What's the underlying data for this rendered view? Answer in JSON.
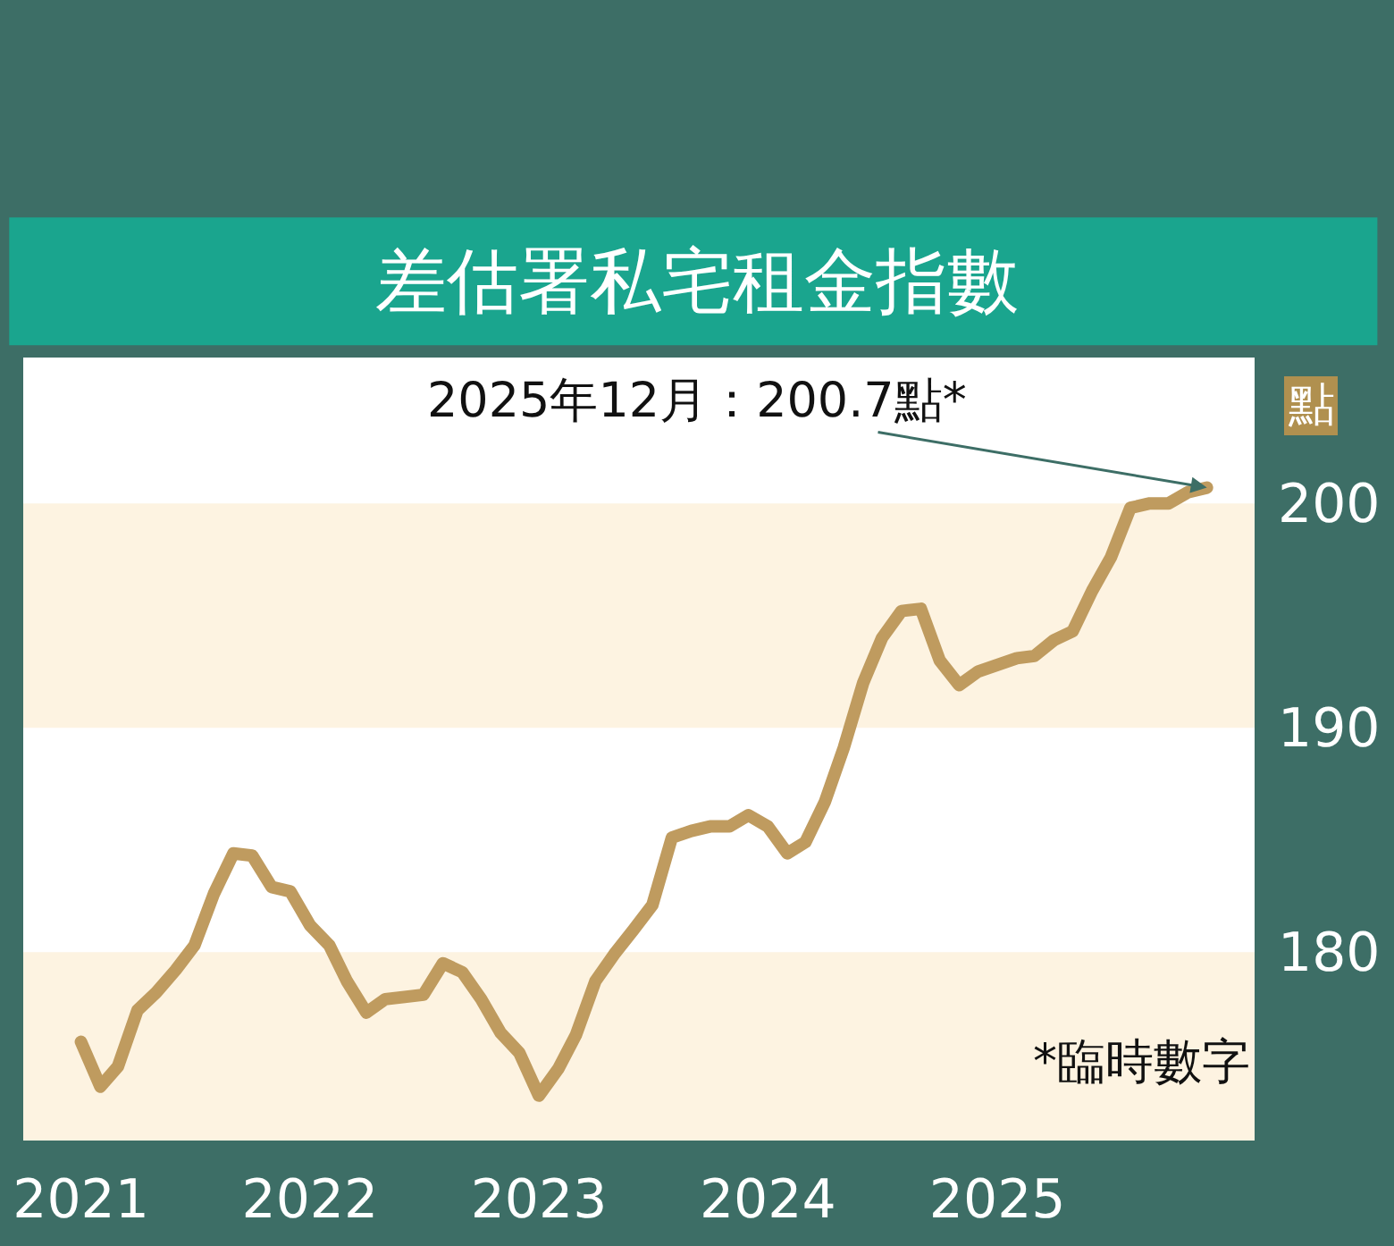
{
  "chart_data": {
    "type": "line",
    "title": "差估署私宅租金指數",
    "ylabel": "點",
    "x": [
      "2021-01",
      "2021-02",
      "2021-03",
      "2021-04",
      "2021-05",
      "2021-06",
      "2021-07",
      "2021-08",
      "2021-09",
      "2021-10",
      "2021-11",
      "2021-12",
      "2022-01",
      "2022-02",
      "2022-03",
      "2022-04",
      "2022-05",
      "2022-06",
      "2022-07",
      "2022-08",
      "2022-09",
      "2022-10",
      "2022-11",
      "2022-12",
      "2023-01",
      "2023-02",
      "2023-03",
      "2023-04",
      "2023-05",
      "2023-06",
      "2023-07",
      "2023-08",
      "2023-09",
      "2023-10",
      "2023-11",
      "2023-12",
      "2024-01",
      "2024-02",
      "2024-03",
      "2024-04",
      "2024-05",
      "2024-06",
      "2024-07",
      "2024-08",
      "2024-09",
      "2024-10",
      "2024-11",
      "2024-12",
      "2025-01",
      "2025-02",
      "2025-03",
      "2025-04",
      "2025-05",
      "2025-06",
      "2025-07",
      "2025-08",
      "2025-09",
      "2025-10",
      "2025-11",
      "2025-12"
    ],
    "series": [
      {
        "color": "#bf9b5f",
        "values": [
          176.0,
          174.0,
          174.9,
          177.4,
          178.2,
          179.2,
          180.3,
          182.6,
          184.4,
          184.3,
          182.9,
          182.7,
          181.2,
          180.3,
          178.7,
          177.3,
          177.9,
          178.0,
          178.1,
          179.5,
          179.1,
          177.9,
          176.4,
          175.5,
          173.6,
          174.8,
          176.3,
          178.7,
          179.9,
          181.0,
          182.1,
          185.1,
          185.4,
          185.6,
          185.6,
          186.1,
          185.6,
          184.4,
          184.9,
          186.7,
          189.1,
          192.0,
          194.0,
          195.2,
          195.3,
          193.0,
          191.9,
          192.5,
          192.8,
          193.1,
          193.2,
          193.9,
          194.3,
          196.1,
          197.6,
          199.8,
          200.0,
          200.0,
          200.5,
          200.7
        ]
      }
    ],
    "xlim": [
      "2020-10-01",
      "2026-02-15"
    ],
    "xticks": [
      {
        "value": "2021-01-01",
        "label": "2021"
      },
      {
        "value": "2022-01-01",
        "label": "2022"
      },
      {
        "value": "2023-01-01",
        "label": "2023"
      },
      {
        "value": "2024-01-01",
        "label": "2024"
      },
      {
        "value": "2025-01-01",
        "label": "2025"
      }
    ],
    "ylim": [
      171.6,
      206.5
    ],
    "yticks": [
      180,
      190,
      200
    ],
    "bands": [
      {
        "axis": "y",
        "from": 190,
        "to": 200,
        "color": "#fdf3e1"
      },
      {
        "axis": "y",
        "from": 171.6,
        "to": 180,
        "color": "#fdf3e1"
      }
    ],
    "annotations": [
      {
        "text": "2025年12月：200.7點*",
        "x": "2025-12",
        "y": 200.7
      },
      "*臨時數字"
    ],
    "grid": false,
    "legend": false,
    "line_style": "solid"
  }
}
